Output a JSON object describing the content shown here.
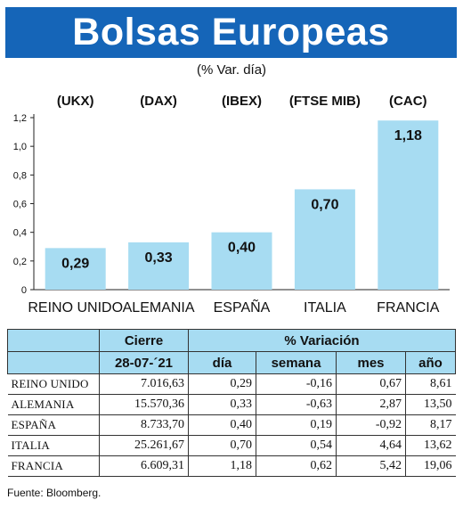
{
  "header": {
    "title": "Bolsas Europeas"
  },
  "subtitle": "(% Var. día)",
  "chart_data": {
    "type": "bar",
    "categories": [
      "REINO UNIDO",
      "ALEMANIA",
      "ESPAÑA",
      "ITALIA",
      "FRANCIA"
    ],
    "index_labels": [
      "(UKX)",
      "(DAX)",
      "(IBEX)",
      "(FTSE MIB)",
      "(CAC)"
    ],
    "values": [
      0.29,
      0.33,
      0.4,
      0.7,
      1.18
    ],
    "value_labels": [
      "0,29",
      "0,33",
      "0,40",
      "0,70",
      "1,18"
    ],
    "ylim": [
      0,
      1.2
    ],
    "yticks": [
      0,
      0.2,
      0.4,
      0.6,
      0.8,
      1.0,
      1.2
    ],
    "ytick_labels": [
      "0",
      "0,2",
      "0,4",
      "0,6",
      "0,8",
      "1,0",
      "1,2"
    ],
    "bar_color": "#a7dcf2",
    "grid": false
  },
  "table": {
    "group_headers": [
      "Cierre",
      "% Variación"
    ],
    "date": "28-07-´21",
    "columns": [
      "día",
      "semana",
      "mes",
      "año"
    ],
    "rows": [
      {
        "name": "REINO UNIDO",
        "cierre": "7.016,63",
        "dia": "0,29",
        "semana": "-0,16",
        "mes": "0,67",
        "anio": "8,61"
      },
      {
        "name": "ALEMANIA",
        "cierre": "15.570,36",
        "dia": "0,33",
        "semana": "-0,63",
        "mes": "2,87",
        "anio": "13,50"
      },
      {
        "name": "ESPAÑA",
        "cierre": "8.733,70",
        "dia": "0,40",
        "semana": "0,19",
        "mes": "-0,92",
        "anio": "8,17"
      },
      {
        "name": "ITALIA",
        "cierre": "25.261,67",
        "dia": "0,70",
        "semana": "0,54",
        "mes": "4,64",
        "anio": "13,62"
      },
      {
        "name": "FRANCIA",
        "cierre": "6.609,31",
        "dia": "1,18",
        "semana": "0,62",
        "mes": "5,42",
        "anio": "19,06"
      }
    ]
  },
  "source": "Fuente: Bloomberg.",
  "colors": {
    "header_bg": "#1565b8",
    "accent": "#a7dcf2"
  }
}
